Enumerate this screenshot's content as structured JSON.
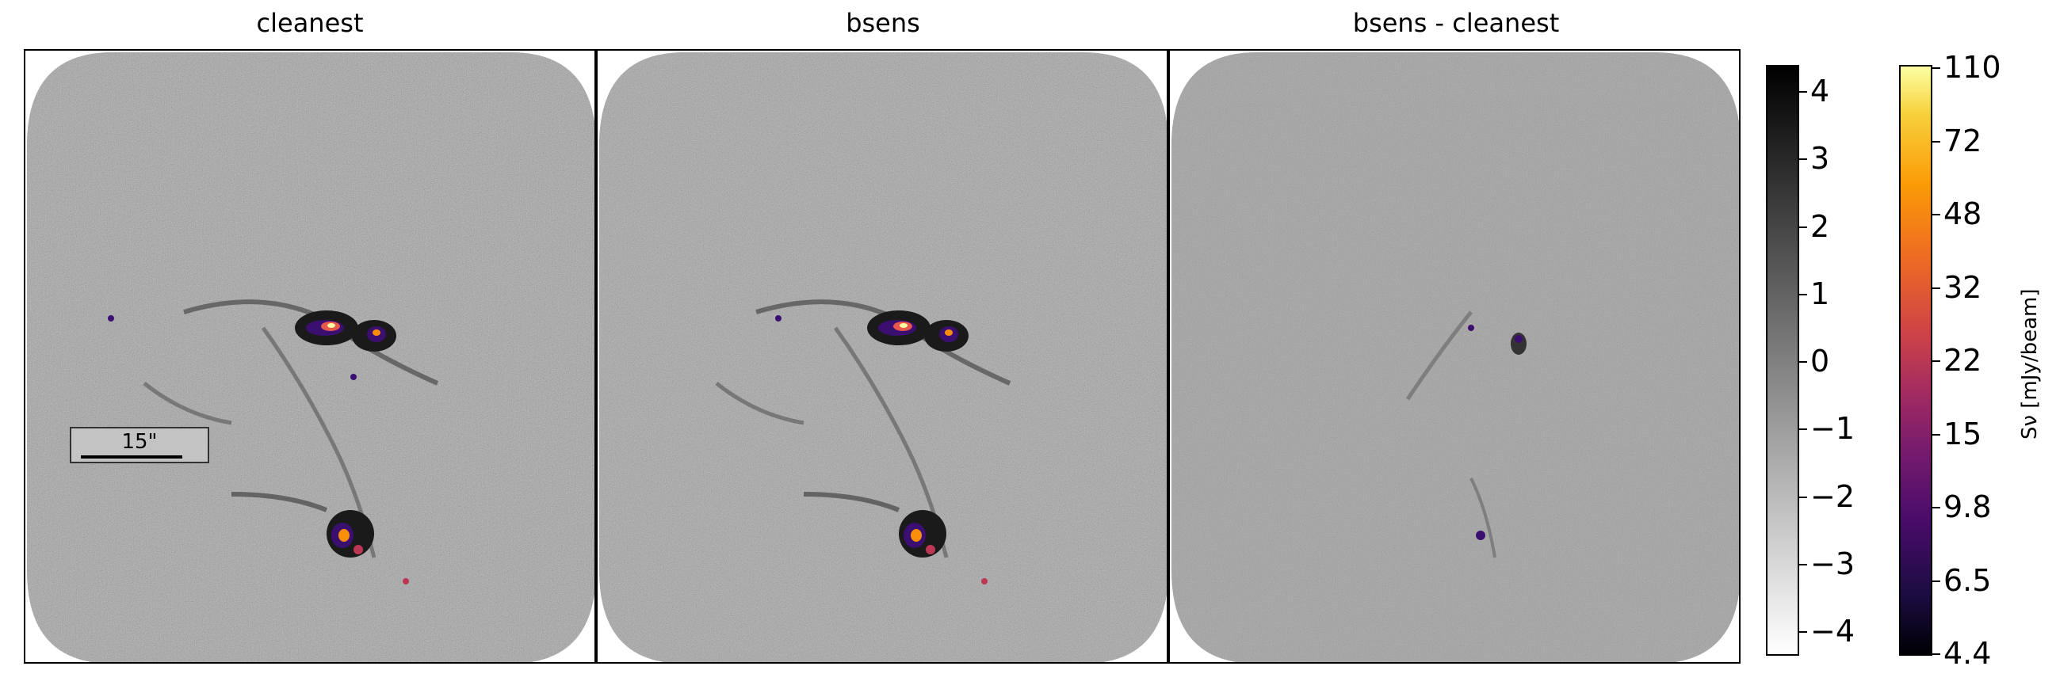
{
  "panels": [
    {
      "title": "cleanest"
    },
    {
      "title": "bsens"
    },
    {
      "title": "bsens - cleanest"
    }
  ],
  "scalebar": {
    "label": "15\""
  },
  "colorbar_gray": {
    "ticks": [
      "4",
      "3",
      "2",
      "1",
      "0",
      "−1",
      "−2",
      "−3",
      "−4"
    ]
  },
  "colorbar_inferno": {
    "ticks": [
      "110",
      "72",
      "48",
      "32",
      "22",
      "15",
      "9.8",
      "6.5",
      "4.4"
    ],
    "label": "Sν [mJy/beam]"
  }
}
